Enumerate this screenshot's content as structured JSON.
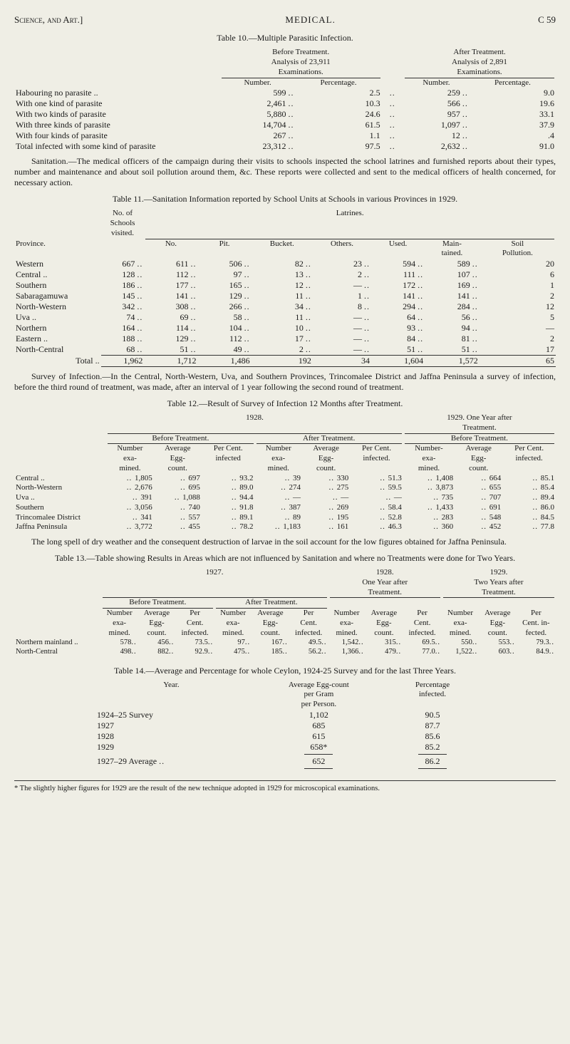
{
  "header": {
    "left": "Science, and Art.]",
    "mid": "MEDICAL.",
    "right": "C 59"
  },
  "t10": {
    "caption": "Table 10.—Multiple Parasitic Infection.",
    "before_head": "Before Treatment.\nAnalysis of 23,911\nExaminations.",
    "after_head": "After Treatment.\nAnalysis of 2,891\nExaminations.",
    "num": "Number.",
    "pct": "Percentage.",
    "rows": [
      {
        "label": "Habouring no parasite  ..",
        "bn": "599",
        "bp": "2.5",
        "an": "259",
        "ap": "9.0"
      },
      {
        "label": "With one kind of parasite",
        "bn": "2,461",
        "bp": "10.3",
        "an": "566",
        "ap": "19.6"
      },
      {
        "label": "With two kinds of parasite",
        "bn": "5,880",
        "bp": "24.6",
        "an": "957",
        "ap": "33.1"
      },
      {
        "label": "With three kinds of parasite",
        "bn": "14,704",
        "bp": "61.5",
        "an": "1,097",
        "ap": "37.9"
      },
      {
        "label": "With four kinds of parasite",
        "bn": "267",
        "bp": "1.1",
        "an": "12",
        "ap": ".4"
      },
      {
        "label": "Total infected with some kind of parasite",
        "bn": "23,312",
        "bp": "97.5",
        "an": "2,632",
        "ap": "91.0"
      }
    ]
  },
  "sanitation_para": "Sanitation.—The medical officers of the campaign during their visits to schools inspected the school latrines and furnished reports about their types, number and maintenance and about soil pollution around them, &c. These reports were collected and sent to the medical officers of health concerned, for necessary action.",
  "t11": {
    "caption": "Table 11.—Sanitation Information reported by School Units at Schools in various Provinces in 1929.",
    "province": "Province.",
    "schools_head": "No. of\nSchools\nvisited.",
    "latrines": "Latrines.",
    "cols": [
      "No.",
      "Pit.",
      "Bucket.",
      "Others.",
      "Used.",
      "Main-\ntained.",
      "Soil\nPollution."
    ],
    "rows": [
      {
        "p": "Western",
        "s": "667",
        "v": [
          "611",
          "506",
          "82",
          "23",
          "594",
          "589",
          "20"
        ]
      },
      {
        "p": "Central ..",
        "s": "128",
        "v": [
          "112",
          "97",
          "13",
          "2",
          "111",
          "107",
          "6"
        ]
      },
      {
        "p": "Southern",
        "s": "186",
        "v": [
          "177",
          "165",
          "12",
          "—",
          "172",
          "169",
          "1"
        ]
      },
      {
        "p": "Sabaragamuwa",
        "s": "145",
        "v": [
          "141",
          "129",
          "11",
          "1",
          "141",
          "141",
          "2"
        ]
      },
      {
        "p": "North-Western",
        "s": "342",
        "v": [
          "308",
          "266",
          "34",
          "8",
          "294",
          "284",
          "12"
        ]
      },
      {
        "p": "Uva   ..",
        "s": "74",
        "v": [
          "69",
          "58",
          "11",
          "—",
          "64",
          "56",
          "5"
        ]
      },
      {
        "p": "Northern",
        "s": "164",
        "v": [
          "114",
          "104",
          "10",
          "—",
          "93",
          "94",
          "—"
        ]
      },
      {
        "p": "Eastern ..",
        "s": "188",
        "v": [
          "129",
          "112",
          "17",
          "—",
          "84",
          "81",
          "2"
        ]
      },
      {
        "p": "North-Central",
        "s": "68",
        "v": [
          "51",
          "49",
          "2",
          "—",
          "51",
          "51",
          "17"
        ]
      }
    ],
    "total_label": "Total  ..",
    "total": {
      "s": "1,962",
      "v": [
        "1,712",
        "1,486",
        "192",
        "34",
        "1,604",
        "1,572",
        "65"
      ]
    }
  },
  "survey_para": "Survey of Infection.—In the Central, North-Western, Uva, and Southern Provinces, Trincomalee District and Jaffna Peninsula a survey of infection, before the third round of treatment, was made, after an interval of 1 year following the second round of treatment.",
  "t12": {
    "caption": "Table 12.—Result of Survey of Infection 12 Months after Treatment.",
    "y1928": "1928.",
    "y1929_head": "1929.  One Year after\nTreatment.",
    "bt": "Before Treatment.",
    "at": "After Treatment.",
    "sub": {
      "ne": "Number\nexa-\nmined.",
      "ae": "Average\nEgg-\ncount.",
      "pc": "Per Cent.\ninfected",
      "ne2": "Number\nexa-\nmined.",
      "ae2": "Average\nEgg-\ncount.",
      "pc2": "Per Cent.\ninfected.",
      "ne3": "Number-\nexa-\nmined.",
      "ae3": "Average\nEgg-\ncount.",
      "pc3": "Per Cent.\ninfected."
    },
    "rows": [
      {
        "p": "Central ..",
        "v": [
          "1,805",
          "697",
          "93.2",
          "39",
          "330",
          "51.3",
          "1,408",
          "664",
          "85.1"
        ]
      },
      {
        "p": "North-Western",
        "v": [
          "2,676",
          "695",
          "89.0",
          "274",
          "275",
          "59.5",
          "3,873",
          "655",
          "85.4"
        ]
      },
      {
        "p": "Uva   ..",
        "v": [
          "391",
          "1,088",
          "94.4",
          "—",
          "—",
          "—",
          "735",
          "707",
          "89.4"
        ]
      },
      {
        "p": "Southern",
        "v": [
          "3,056",
          "740",
          "91.8",
          "387",
          "269",
          "58.4",
          "1,433",
          "691",
          "86.0"
        ]
      },
      {
        "p": "Trincomalee District",
        "v": [
          "341",
          "557",
          "89.1",
          "89",
          "195",
          "52.8",
          "283",
          "548",
          "84.5"
        ]
      },
      {
        "p": "Jaffna Peninsula",
        "v": [
          "3,772",
          "455",
          "78.2",
          "1,183",
          "161",
          "46.3",
          "360",
          "452",
          "77.8"
        ]
      }
    ]
  },
  "long_spell_para": "The long spell of dry weather and the consequent destruction of larvae in the soil account for the low figures obtained for Jaffna Peninsula.",
  "t13": {
    "caption": "Table 13.—Table showing Results in Areas which are not influenced by Sanitation and where no Treatments were done for Two Years.",
    "y1927": "1927.",
    "y1928": "1928.\nOne Year after\nTreatment.",
    "y1929": "1929.\nTwo Years after\nTreatment.",
    "bt": "Before Treatment.",
    "at": "After Treatment.",
    "sub_cols": [
      "Number\nexa-\nmined.",
      "Average\nEgg-\ncount.",
      "Per\nCent.\ninfected.",
      "Number\nexa-\nmined.",
      "Average\nEgg-\ncount.",
      "Per\nCent.\ninfected.",
      "Number\nexa-\nmined.",
      "Average\nEgg-\ncount.",
      "Per\nCent.\ninfected.",
      "Number\nexa-\nmined.",
      "Average\nEgg-\ncount.",
      "Per\nCent. in-\nfected."
    ],
    "rows": [
      {
        "p": "Northern mainland ..",
        "v": [
          "578",
          "456",
          "73.5",
          "97",
          "167",
          "49.5",
          "1,542",
          "315",
          "69.5",
          "550",
          "553",
          "79.3"
        ]
      },
      {
        "p": "North-Central",
        "v": [
          "498",
          "882",
          "92.9",
          "475",
          "185",
          "56.2",
          "1,366",
          "479",
          "77.0",
          "1,522",
          "603",
          "84.9"
        ]
      }
    ]
  },
  "t14": {
    "caption": "Table 14.—Average and Percentage for whole Ceylon, 1924-25 Survey and for the last Three Years.",
    "year": "Year.",
    "avg_head": "Average Egg-count\nper Gram\nper Person.",
    "pct_head": "Percentage\ninfected.",
    "rows": [
      {
        "y": "1924–25 Survey",
        "a": "1,102",
        "p": "90.5"
      },
      {
        "y": "1927",
        "a": "685",
        "p": "87.7"
      },
      {
        "y": "1928",
        "a": "615",
        "p": "85.6"
      },
      {
        "y": "1929",
        "a": "658*",
        "p": "85.2"
      }
    ],
    "avg_row": {
      "y": "1927–29 Average",
      "a": "652",
      "p": "86.2"
    }
  },
  "footnote": "* The slightly higher figures for 1929 are the result of the new technique adopted in 1929 for microscopical examinations."
}
